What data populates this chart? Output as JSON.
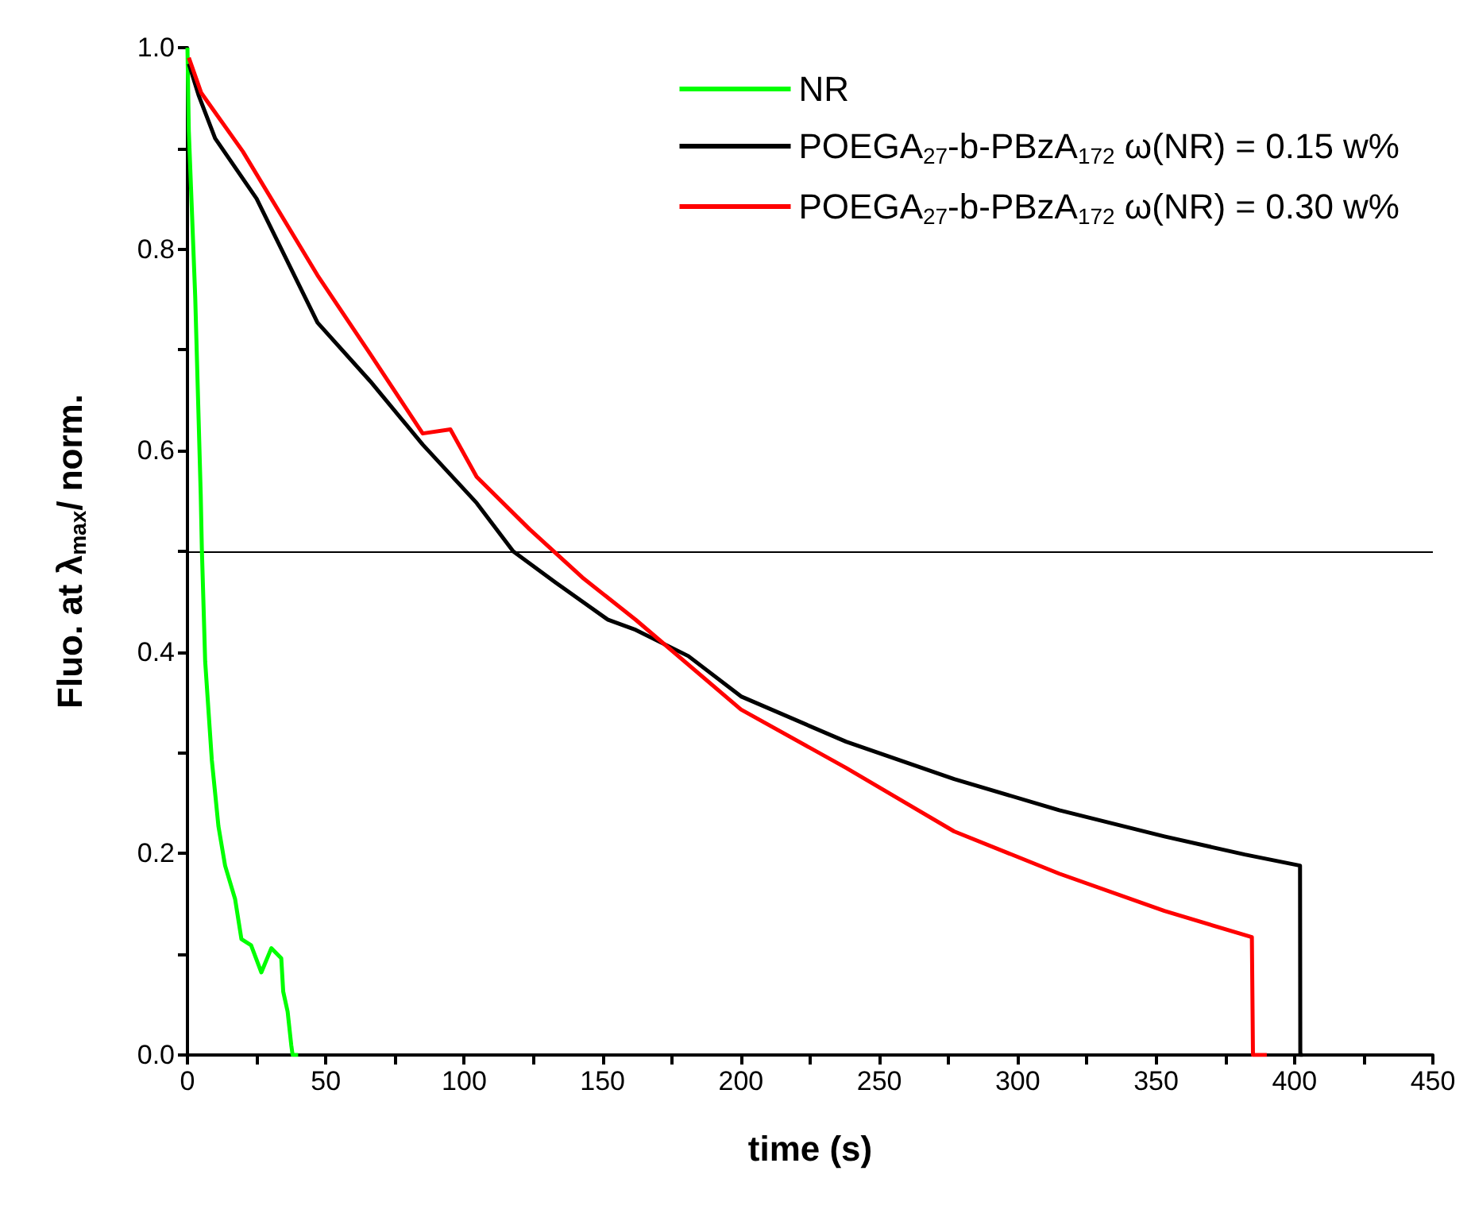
{
  "chart_data": {
    "type": "line",
    "xlabel": "time (s)",
    "ylabel": "Fluo. at λ$_{max}$/ norm.",
    "xlim": [
      0,
      450
    ],
    "xticks": [
      0,
      50,
      100,
      150,
      200,
      250,
      300,
      350,
      400,
      450
    ],
    "ylim": [
      0,
      1.0
    ],
    "yticks": [
      {
        "value": 0,
        "label": "0.0"
      },
      {
        "value": 0.2,
        "label": "0.2"
      },
      {
        "value": 0.4,
        "label": "0.4"
      },
      {
        "value": 0.6,
        "label": "0.6"
      },
      {
        "value": 0.8,
        "label": "0.8"
      },
      {
        "value": 1.0,
        "label": "1.0"
      }
    ],
    "grid": false,
    "legend": "top right",
    "marker": "none",
    "line_style": "solid",
    "ref_lines": [
      {
        "axis": "y",
        "value": 0.5,
        "color": "#000000"
      }
    ],
    "series": [
      {
        "name": "NR",
        "color": "#00ff00",
        "x": [
          0,
          0.5,
          2.8,
          4.8,
          5.2,
          6.4,
          8.8,
          11.2,
          13.6,
          17.2,
          19.5,
          23,
          26.7,
          30.3,
          33.9,
          34.6,
          36.2,
          37.5,
          38,
          40
        ],
        "values": [
          1.0,
          0.917,
          0.753,
          0.556,
          0.503,
          0.391,
          0.293,
          0.227,
          0.188,
          0.155,
          0.115,
          0.109,
          0.082,
          0.106,
          0.096,
          0.063,
          0.043,
          0.01,
          0,
          0
        ]
      },
      {
        "name": "POEGA$_{27}$-b-PBzA$_{172}$ ω(NR) = 0.15 w%",
        "color": "#000000",
        "x": [
          0.5,
          4,
          10,
          25,
          47,
          66,
          85,
          104.5,
          117.7,
          133,
          152,
          162,
          181,
          200,
          238,
          277,
          315,
          353,
          382,
          402,
          402.1,
          403
        ],
        "values": [
          0.984,
          0.953,
          0.91,
          0.85,
          0.727,
          0.669,
          0.606,
          0.548,
          0.5,
          0.469,
          0.432,
          0.422,
          0.396,
          0.356,
          0.311,
          0.274,
          0.243,
          0.217,
          0.199,
          0.188,
          0,
          0
        ]
      },
      {
        "name": "POEGA$_{27}$-b-PBzA$_{172}$ ω(NR) = 0.30 w%",
        "color": "#ff0000",
        "x": [
          0.5,
          5,
          20,
          47,
          66,
          85,
          95,
          104.5,
          123.6,
          142.7,
          162,
          200,
          238,
          277,
          315,
          353,
          384.6,
          385,
          390
        ],
        "values": [
          0.99,
          0.955,
          0.897,
          0.774,
          0.696,
          0.617,
          0.621,
          0.574,
          0.522,
          0.474,
          0.432,
          0.343,
          0.285,
          0.222,
          0.18,
          0.143,
          0.117,
          0,
          0
        ]
      }
    ]
  }
}
